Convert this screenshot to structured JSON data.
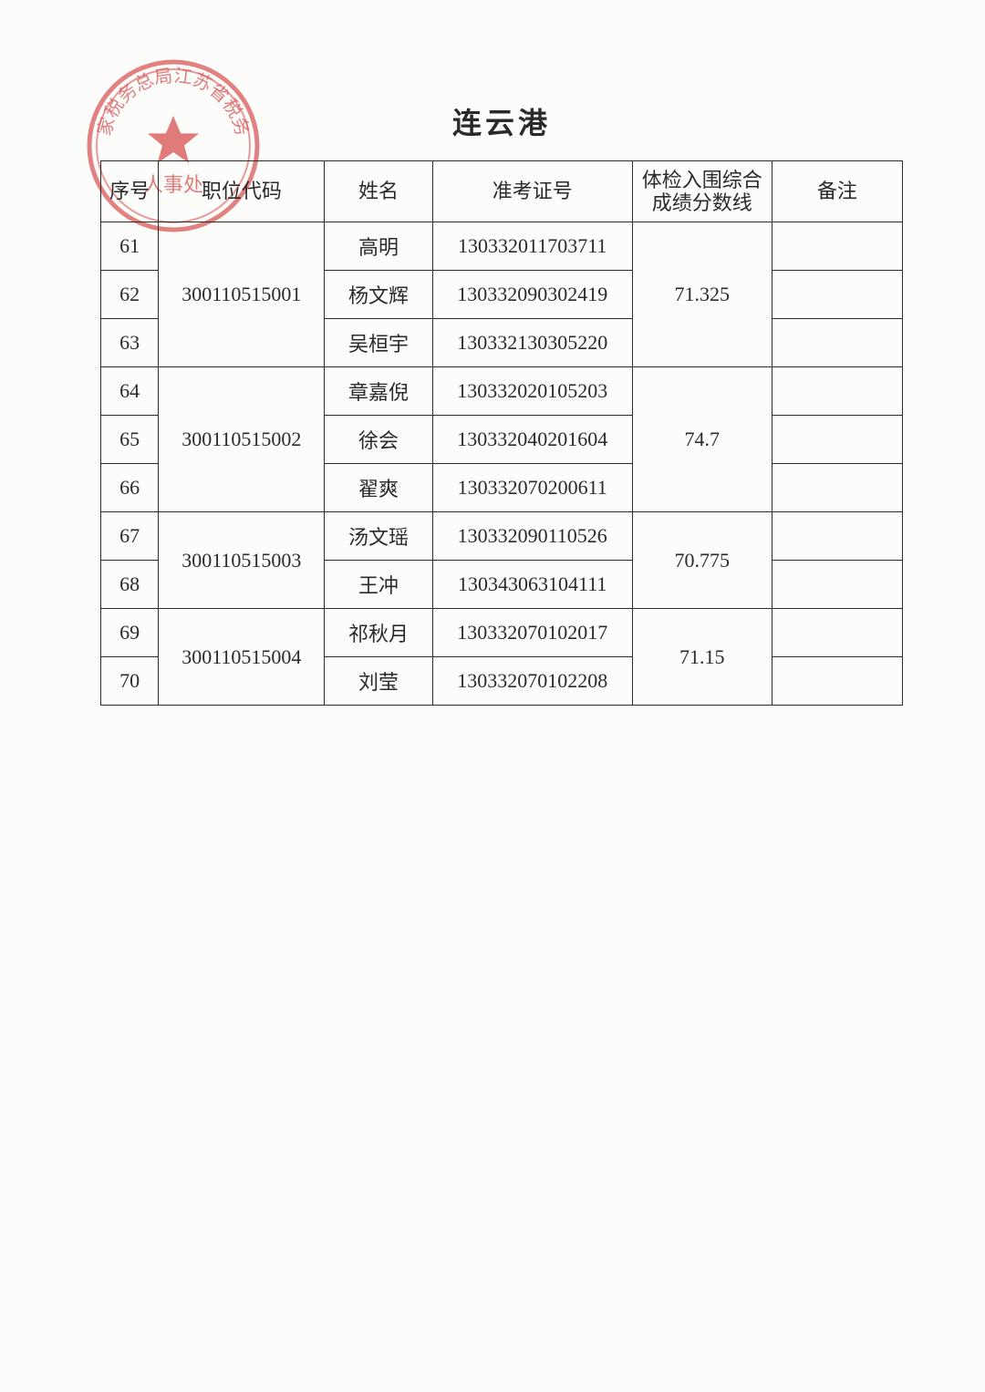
{
  "title": "连云港",
  "stamp": {
    "outer_text": "国家税务总局江苏省税务局",
    "inner_text": "人事处",
    "color": "#d85a5a",
    "color_light": "#e8a0a0"
  },
  "table": {
    "headers": {
      "seq": "序号",
      "code": "职位代码",
      "name": "姓名",
      "exam": "准考证号",
      "score_line1": "体检入围综合",
      "score_line2": "成绩分数线",
      "note": "备注"
    },
    "groups": [
      {
        "code": "300110515001",
        "score": "71.325",
        "rows": [
          {
            "seq": "61",
            "name": "高明",
            "exam": "130332011703711",
            "note": ""
          },
          {
            "seq": "62",
            "name": "杨文辉",
            "exam": "130332090302419",
            "note": ""
          },
          {
            "seq": "63",
            "name": "吴桓宇",
            "exam": "130332130305220",
            "note": ""
          }
        ]
      },
      {
        "code": "300110515002",
        "score": "74.7",
        "rows": [
          {
            "seq": "64",
            "name": "章嘉倪",
            "exam": "130332020105203",
            "note": ""
          },
          {
            "seq": "65",
            "name": "徐会",
            "exam": "130332040201604",
            "note": ""
          },
          {
            "seq": "66",
            "name": "翟爽",
            "exam": "130332070200611",
            "note": ""
          }
        ]
      },
      {
        "code": "300110515003",
        "score": "70.775",
        "rows": [
          {
            "seq": "67",
            "name": "汤文瑶",
            "exam": "130332090110526",
            "note": ""
          },
          {
            "seq": "68",
            "name": "王冲",
            "exam": "130343063104111",
            "note": ""
          }
        ]
      },
      {
        "code": "300110515004",
        "score": "71.15",
        "rows": [
          {
            "seq": "69",
            "name": "祁秋月",
            "exam": "130332070102017",
            "note": ""
          },
          {
            "seq": "70",
            "name": "刘莹",
            "exam": "130332070102208",
            "note": ""
          }
        ]
      }
    ]
  },
  "style": {
    "border_color": "#2a2a2a",
    "text_color": "#2a2a2a",
    "background": "#fcfcfa",
    "font_size_pt": 16,
    "title_font_size_pt": 24
  }
}
